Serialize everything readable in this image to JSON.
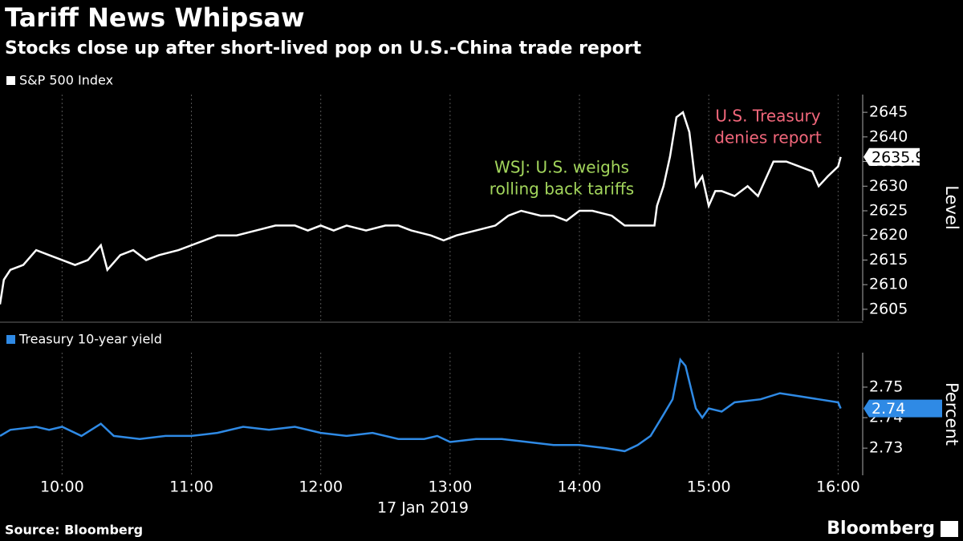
{
  "title": "Tariff News Whipsaw",
  "subtitle": "Stocks close up after short-lived pop on U.S.-China trade report",
  "x_label": "17 Jan 2019",
  "source": "Source: Bloomberg",
  "brand": "Bloomberg",
  "chart_data": [
    {
      "type": "line",
      "y_label": "Level",
      "xlim": [
        9.52,
        16.19
      ],
      "xticks": [
        {
          "value": 10,
          "label": "10:00"
        },
        {
          "value": 11,
          "label": "11:00"
        },
        {
          "value": 12,
          "label": "12:00"
        },
        {
          "value": 13,
          "label": "13:00"
        },
        {
          "value": 14,
          "label": "14:00"
        },
        {
          "value": 15,
          "label": "15:00"
        },
        {
          "value": 16,
          "label": "16:00"
        }
      ],
      "ylim": [
        2602.7,
        2648.6
      ],
      "yticks": [
        2605,
        2610,
        2615,
        2620,
        2625,
        2630,
        2635,
        2640,
        2645
      ],
      "grid": true,
      "x": [
        9.52,
        9.55,
        9.6,
        9.7,
        9.8,
        9.9,
        10.0,
        10.1,
        10.2,
        10.3,
        10.35,
        10.45,
        10.55,
        10.65,
        10.75,
        10.9,
        11.0,
        11.1,
        11.2,
        11.35,
        11.5,
        11.65,
        11.8,
        11.9,
        12.0,
        12.1,
        12.2,
        12.35,
        12.5,
        12.6,
        12.7,
        12.85,
        12.95,
        13.05,
        13.2,
        13.35,
        13.45,
        13.55,
        13.7,
        13.8,
        13.9,
        14.0,
        14.1,
        14.25,
        14.35,
        14.5,
        14.58,
        14.6,
        14.65,
        14.7,
        14.75,
        14.8,
        14.85,
        14.9,
        14.95,
        15.0,
        15.05,
        15.1,
        15.2,
        15.3,
        15.38,
        15.5,
        15.6,
        15.7,
        15.8,
        15.85,
        15.92,
        16.0,
        16.02
      ],
      "series": [
        {
          "name": "S&P 500 Index",
          "color": "#ffffff",
          "last_value_label": "2635.94",
          "values": [
            2606,
            2611,
            2613,
            2614,
            2617,
            2616,
            2615,
            2614,
            2615,
            2618,
            2613,
            2616,
            2617,
            2615,
            2616,
            2617,
            2618,
            2619,
            2620,
            2620,
            2621,
            2622,
            2622,
            2621,
            2622,
            2621,
            2622,
            2621,
            2622,
            2622,
            2621,
            2620,
            2619,
            2620,
            2621,
            2622,
            2624,
            2625,
            2624,
            2624,
            2623,
            2625,
            2625,
            2624,
            2622,
            2622,
            2622,
            2626,
            2630,
            2636,
            2644,
            2645,
            2641,
            2630,
            2632,
            2626,
            2629,
            2629,
            2628,
            2630,
            2628,
            2635,
            2635,
            2634,
            2633,
            2630,
            2632,
            2634,
            2635.94
          ]
        }
      ],
      "annotations": [
        {
          "lines": [
            "WSJ: U.S. weighs",
            "rolling back tariffs"
          ],
          "color": "#a3d65c"
        },
        {
          "lines": [
            "U.S. Treasury",
            "denies report"
          ],
          "color": "#f2677b"
        }
      ]
    },
    {
      "type": "line",
      "y_label": "Percent",
      "xlim": [
        9.52,
        16.19
      ],
      "xticks": [
        {
          "value": 10,
          "label": "10:00"
        },
        {
          "value": 11,
          "label": "11:00"
        },
        {
          "value": 12,
          "label": "12:00"
        },
        {
          "value": 13,
          "label": "13:00"
        },
        {
          "value": 14,
          "label": "14:00"
        },
        {
          "value": 15,
          "label": "15:00"
        },
        {
          "value": 16,
          "label": "16:00"
        }
      ],
      "ylim": [
        2.7211,
        2.7613
      ],
      "yticks": [
        2.73,
        2.74,
        2.75
      ],
      "grid": true,
      "x": [
        9.52,
        9.6,
        9.8,
        9.9,
        10.0,
        10.15,
        10.3,
        10.4,
        10.6,
        10.8,
        11.0,
        11.2,
        11.4,
        11.6,
        11.8,
        12.0,
        12.2,
        12.4,
        12.6,
        12.8,
        12.9,
        13.0,
        13.2,
        13.4,
        13.6,
        13.8,
        14.0,
        14.2,
        14.35,
        14.45,
        14.55,
        14.65,
        14.72,
        14.78,
        14.82,
        14.9,
        14.95,
        15.0,
        15.1,
        15.2,
        15.4,
        15.55,
        15.7,
        15.85,
        16.0,
        16.02
      ],
      "series": [
        {
          "name": "Treasury 10-year yield",
          "color": "#2f8ae5",
          "last_value_label": "2.74",
          "values": [
            2.734,
            2.736,
            2.737,
            2.736,
            2.737,
            2.734,
            2.738,
            2.734,
            2.733,
            2.734,
            2.734,
            2.735,
            2.737,
            2.736,
            2.737,
            2.735,
            2.734,
            2.735,
            2.733,
            2.733,
            2.734,
            2.732,
            2.733,
            2.733,
            2.732,
            2.731,
            2.731,
            2.73,
            2.729,
            2.731,
            2.734,
            2.741,
            2.746,
            2.759,
            2.757,
            2.743,
            2.74,
            2.743,
            2.742,
            2.745,
            2.746,
            2.748,
            2.747,
            2.746,
            2.745,
            2.743
          ]
        }
      ]
    }
  ]
}
